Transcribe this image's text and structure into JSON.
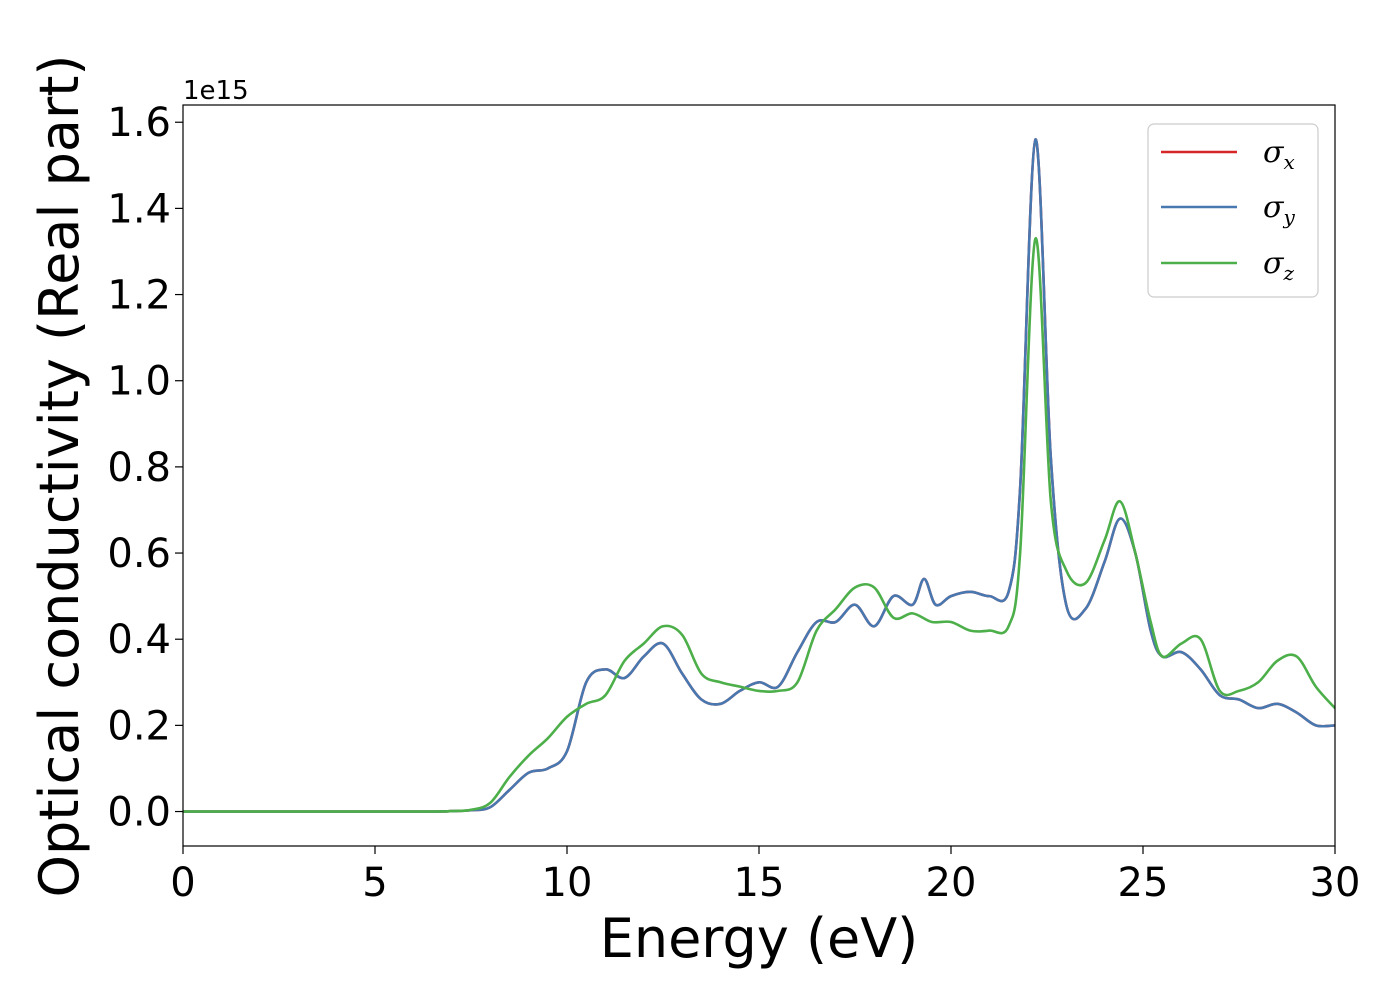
{
  "chart_data": {
    "type": "line",
    "xlabel": "Energy (eV)",
    "ylabel": "Optical conductivity (Real part)",
    "y_offset_label": "1e15",
    "y_scale": 1000000000000000.0,
    "xlim": [
      0,
      30
    ],
    "ylim": [
      -0.08,
      1.64
    ],
    "x_ticks": [
      0,
      5,
      10,
      15,
      20,
      25,
      30
    ],
    "y_ticks": [
      0.0,
      0.2,
      0.4,
      0.6,
      0.8,
      1.0,
      1.2,
      1.4,
      1.6
    ],
    "x_tick_labels": [
      "0",
      "5",
      "10",
      "15",
      "20",
      "25",
      "30"
    ],
    "y_tick_labels": [
      "0.0",
      "0.2",
      "0.4",
      "0.6",
      "0.8",
      "1.0",
      "1.2",
      "1.4",
      "1.6"
    ],
    "grid": false,
    "legend_position": "top-right",
    "series": [
      {
        "name": "σx",
        "symbol": "σ",
        "subscript": "x",
        "color": "#d62728",
        "x": [
          0,
          6,
          7,
          7.5,
          8,
          8.5,
          9,
          9.5,
          10,
          10.5,
          11,
          11.5,
          12,
          12.5,
          13,
          13.5,
          14,
          14.5,
          15,
          15.5,
          16,
          16.5,
          17,
          17.5,
          18,
          18.5,
          19,
          19.3,
          19.6,
          20,
          20.5,
          21,
          21.5,
          21.8,
          22.2,
          22.6,
          23,
          23.5,
          24,
          24.4,
          24.8,
          25.2,
          25.5,
          26,
          26.5,
          27,
          27.5,
          28,
          28.5,
          29,
          29.5,
          30
        ],
        "y": [
          0,
          0,
          0.001,
          0.003,
          0.01,
          0.05,
          0.09,
          0.1,
          0.14,
          0.3,
          0.33,
          0.31,
          0.36,
          0.39,
          0.32,
          0.26,
          0.25,
          0.28,
          0.3,
          0.29,
          0.37,
          0.44,
          0.44,
          0.48,
          0.43,
          0.5,
          0.48,
          0.54,
          0.48,
          0.5,
          0.51,
          0.5,
          0.51,
          0.75,
          1.56,
          0.82,
          0.48,
          0.47,
          0.58,
          0.68,
          0.6,
          0.42,
          0.36,
          0.37,
          0.33,
          0.27,
          0.26,
          0.24,
          0.25,
          0.23,
          0.2,
          0.2
        ]
      },
      {
        "name": "σy",
        "symbol": "σ",
        "subscript": "y",
        "color": "#4878b0",
        "x": [
          0,
          6,
          7,
          7.5,
          8,
          8.5,
          9,
          9.5,
          10,
          10.5,
          11,
          11.5,
          12,
          12.5,
          13,
          13.5,
          14,
          14.5,
          15,
          15.5,
          16,
          16.5,
          17,
          17.5,
          18,
          18.5,
          19,
          19.3,
          19.6,
          20,
          20.5,
          21,
          21.5,
          21.8,
          22.2,
          22.6,
          23,
          23.5,
          24,
          24.4,
          24.8,
          25.2,
          25.5,
          26,
          26.5,
          27,
          27.5,
          28,
          28.5,
          29,
          29.5,
          30
        ],
        "y": [
          0,
          0,
          0.001,
          0.003,
          0.01,
          0.05,
          0.09,
          0.1,
          0.14,
          0.3,
          0.33,
          0.31,
          0.36,
          0.39,
          0.32,
          0.26,
          0.25,
          0.28,
          0.3,
          0.29,
          0.37,
          0.44,
          0.44,
          0.48,
          0.43,
          0.5,
          0.48,
          0.54,
          0.48,
          0.5,
          0.51,
          0.5,
          0.51,
          0.75,
          1.56,
          0.82,
          0.48,
          0.47,
          0.58,
          0.68,
          0.6,
          0.42,
          0.36,
          0.37,
          0.33,
          0.27,
          0.26,
          0.24,
          0.25,
          0.23,
          0.2,
          0.2
        ]
      },
      {
        "name": "σz",
        "symbol": "σ",
        "subscript": "z",
        "color": "#4daf4a",
        "x": [
          0,
          6,
          7,
          7.5,
          8,
          8.5,
          9,
          9.5,
          10,
          10.5,
          11,
          11.5,
          12,
          12.5,
          13,
          13.5,
          14,
          14.5,
          15,
          15.5,
          16,
          16.5,
          17,
          17.5,
          18,
          18.5,
          19,
          19.5,
          20,
          20.5,
          21,
          21.5,
          21.8,
          22.2,
          22.6,
          23,
          23.5,
          24,
          24.4,
          24.8,
          25.2,
          25.5,
          26,
          26.5,
          27,
          27.5,
          28,
          28.5,
          29,
          29.5,
          30
        ],
        "y": [
          0,
          0,
          0.001,
          0.004,
          0.02,
          0.08,
          0.13,
          0.17,
          0.22,
          0.25,
          0.27,
          0.35,
          0.39,
          0.43,
          0.41,
          0.32,
          0.3,
          0.29,
          0.28,
          0.28,
          0.3,
          0.42,
          0.47,
          0.52,
          0.52,
          0.45,
          0.46,
          0.44,
          0.44,
          0.42,
          0.42,
          0.43,
          0.6,
          1.33,
          0.72,
          0.56,
          0.53,
          0.63,
          0.72,
          0.6,
          0.44,
          0.36,
          0.39,
          0.4,
          0.28,
          0.28,
          0.3,
          0.35,
          0.36,
          0.29,
          0.24
        ]
      }
    ]
  }
}
